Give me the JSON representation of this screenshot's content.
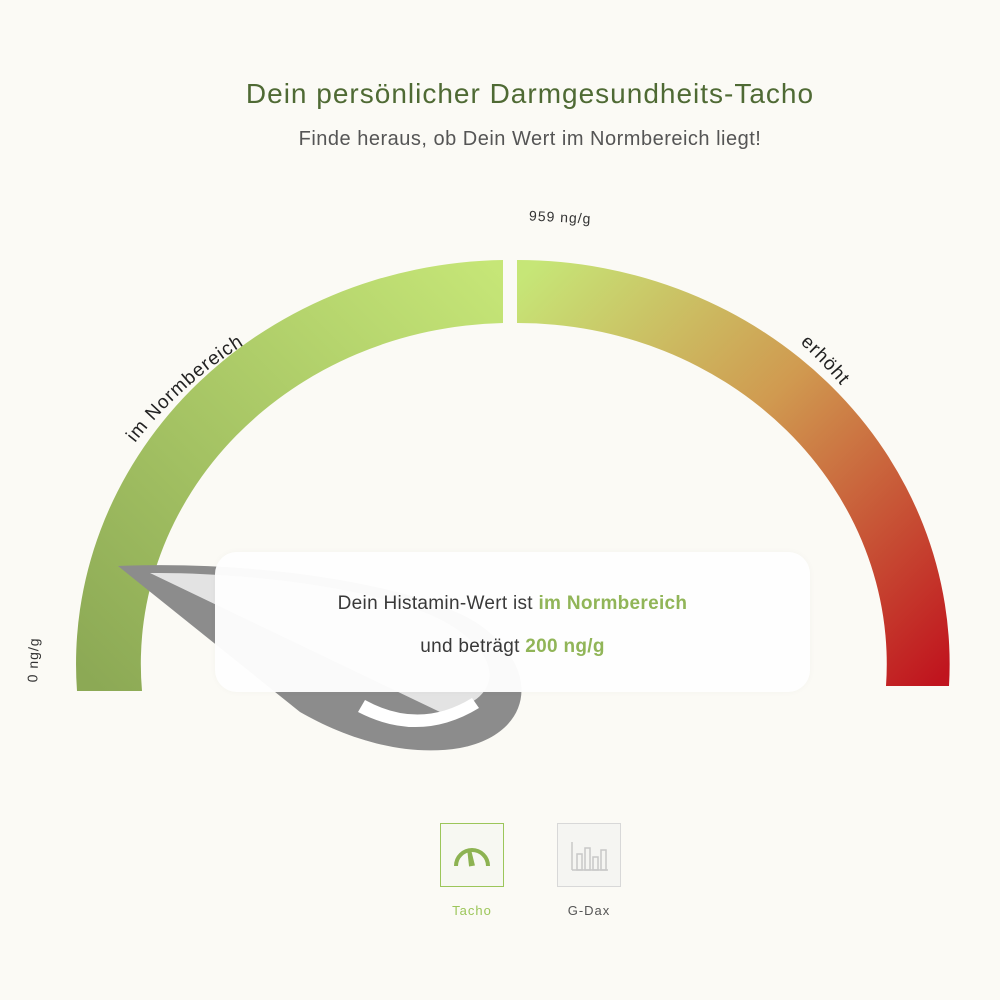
{
  "header": {
    "title": "Dein persönlicher Darmgesundheits-Tacho",
    "subtitle": "Finde heraus, ob Dein Wert im Normbereich liegt!"
  },
  "gauge": {
    "min_label": "0 ng/g",
    "threshold_label": "959 ng/g",
    "normal_label": "im Normbereich",
    "high_label": "erhöht",
    "value": 200,
    "threshold": 959,
    "unit": "ng/g"
  },
  "result": {
    "line1_prefix": "Dein Histamin-Wert ist ",
    "line1_highlight": "im Normbereich",
    "line2_prefix": "und beträgt ",
    "line2_highlight": "200 ng/g"
  },
  "tabs": [
    {
      "label": "Tacho",
      "icon": "speedometer-icon",
      "active": true
    },
    {
      "label": "G-Dax",
      "icon": "bar-chart-icon",
      "active": false
    }
  ],
  "colors": {
    "title": "#4f6a34",
    "accent_green": "#8db352",
    "gauge_green_dark": "#8ca955",
    "gauge_green_light": "#c6e677",
    "gauge_red": "#c0141e",
    "needle_gray": "#8c8c8c"
  }
}
